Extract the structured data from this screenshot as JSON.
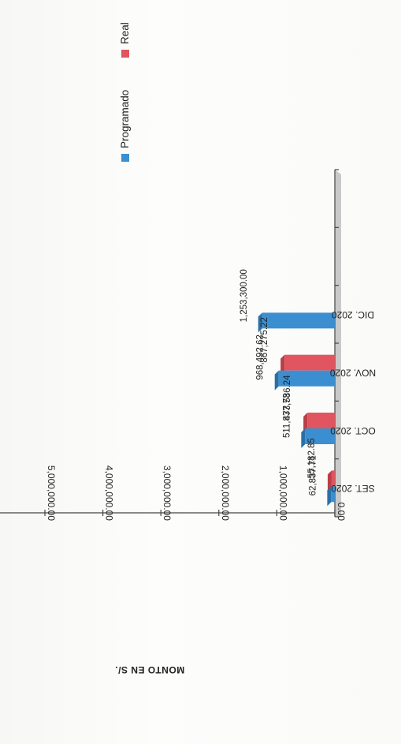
{
  "chart_data": {
    "type": "bar",
    "title": "",
    "xlabel": "",
    "ylabel": "MONTO EN S/.",
    "ylim": [
      0,
      5000000
    ],
    "y_ticks": [
      "0.00",
      "1,000,000.00",
      "2,000,000.00",
      "3,000,000.00",
      "4,000,000.00",
      "5,000,000.00"
    ],
    "categories": [
      "SET. 2020",
      "OCT. 2020",
      "NOV. 2020",
      "DIC. 2020"
    ],
    "series": [
      {
        "name": "Programado",
        "values": [
          62837.71,
          511837.73,
          968492.62,
          1253300.0
        ],
        "labels": [
          "62,837.71",
          "511,837.73",
          "968,492.62",
          "1,253,300.00"
        ],
        "color": "#3b8fd0"
      },
      {
        "name": "Real",
        "values": [
          55182.85,
          473586.24,
          867275.22,
          null
        ],
        "labels": [
          "55,182.85",
          "473,586.24",
          "867,275.22",
          ""
        ],
        "color": "#e0555f"
      }
    ],
    "legend_position": "top",
    "grid": false,
    "orientation": "rotated"
  }
}
